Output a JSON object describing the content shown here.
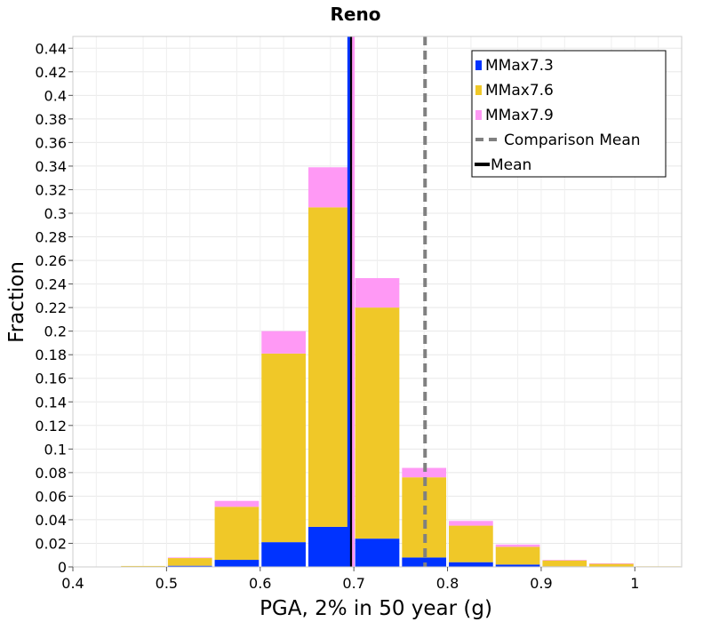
{
  "chart_data": {
    "type": "bar",
    "stacked": true,
    "title": "Reno",
    "xlabel": "PGA, 2% in 50 year (g)",
    "ylabel": "Fraction",
    "xlim": [
      0.4,
      1.05
    ],
    "ylim": [
      0,
      0.45
    ],
    "xticks": [
      0.4,
      0.5,
      0.6,
      0.7,
      0.8,
      0.9,
      1
    ],
    "xtick_labels": [
      "0.4",
      "0.5",
      "0.6",
      "0.7",
      "0.8",
      "0.9",
      "1"
    ],
    "yticks": [
      0,
      0.02,
      0.04,
      0.06,
      0.08,
      0.1,
      0.12,
      0.14,
      0.16,
      0.18,
      0.2,
      0.22,
      0.24,
      0.26,
      0.28,
      0.3,
      0.32,
      0.34,
      0.36,
      0.38,
      0.4,
      0.42,
      0.44
    ],
    "ytick_labels": [
      "0",
      "0.02",
      "0.04",
      "0.06",
      "0.08",
      "0.1",
      "0.12",
      "0.14",
      "0.16",
      "0.18",
      "0.2",
      "0.22",
      "0.24",
      "0.26",
      "0.28",
      "0.3",
      "0.32",
      "0.34",
      "0.36",
      "0.38",
      "0.4",
      "0.42",
      "0.44"
    ],
    "bin_width": 0.05,
    "bin_centers": [
      0.425,
      0.475,
      0.525,
      0.575,
      0.625,
      0.675,
      0.725,
      0.775,
      0.825,
      0.875,
      0.925,
      0.975,
      1.025
    ],
    "series": [
      {
        "name": "MMax7.3",
        "color": "#0033ff",
        "values": [
          0,
          0,
          0.001,
          0.006,
          0.021,
          0.034,
          0.024,
          0.008,
          0.004,
          0.002,
          0.0005,
          0.0003,
          0
        ]
      },
      {
        "name": "MMax7.6",
        "color": "#f0c828",
        "values": [
          0,
          0.0008,
          0.0065,
          0.045,
          0.16,
          0.271,
          0.196,
          0.068,
          0.031,
          0.015,
          0.005,
          0.0025,
          0.0005
        ]
      },
      {
        "name": "MMax7.9",
        "color": "#ff99f5",
        "values": [
          0,
          0,
          0.0005,
          0.005,
          0.019,
          0.034,
          0.025,
          0.008,
          0.004,
          0.002,
          0.0005,
          0.0002,
          0
        ]
      }
    ],
    "lines": [
      {
        "name": "Comparison Mean",
        "x": 0.776,
        "color": "#808080",
        "style": "dashed"
      },
      {
        "name": "Mean",
        "x": 0.697,
        "color": "#000000",
        "style": "solid"
      }
    ],
    "mean_line_marks": [
      {
        "x": 0.6945,
        "color": "#0033ff"
      },
      {
        "x": 0.6995,
        "color": "#ff99f5"
      }
    ],
    "legend": {
      "placement": "top-right",
      "entries": [
        {
          "label": "MMax7.3",
          "symbol": "box",
          "color": "#0033ff"
        },
        {
          "label": "MMax7.6",
          "symbol": "box",
          "color": "#f0c828"
        },
        {
          "label": "MMax7.9",
          "symbol": "box",
          "color": "#ff99f5"
        },
        {
          "label": "Comparison Mean",
          "symbol": "dashed-line",
          "color": "#808080"
        },
        {
          "label": "Mean",
          "symbol": "line",
          "color": "#000000"
        }
      ]
    },
    "grid": true
  }
}
